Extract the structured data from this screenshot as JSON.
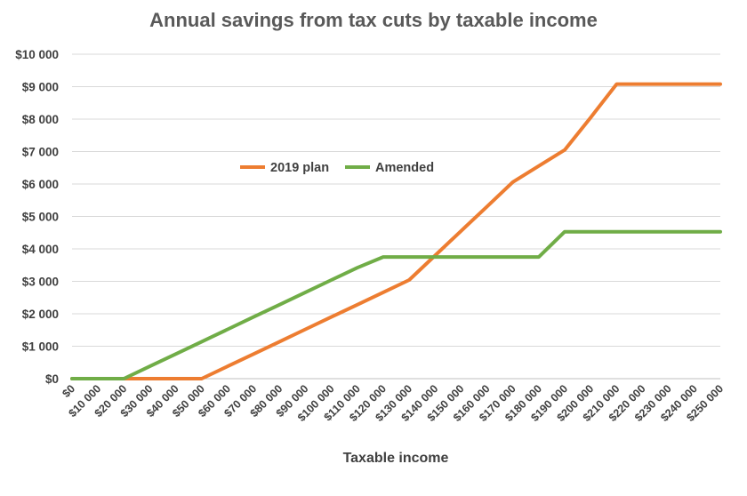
{
  "chart_data": {
    "type": "line",
    "title": "Annual savings from tax cuts by taxable income",
    "xlabel": "Taxable income",
    "ylabel": "",
    "ylim": [
      0,
      10000
    ],
    "yticks": [
      "$0",
      "$1 000",
      "$2 000",
      "$3 000",
      "$4 000",
      "$5 000",
      "$6 000",
      "$7 000",
      "$8 000",
      "$9 000",
      "$10 000"
    ],
    "categories": [
      "$0",
      "$10 000",
      "$20 000",
      "$30 000",
      "$40 000",
      "$50 000",
      "$60 000",
      "$70 000",
      "$80 000",
      "$90 000",
      "$100 000",
      "$110 000",
      "$120 000",
      "$130 000",
      "$140 000",
      "$150 000",
      "$160 000",
      "$170 000",
      "$180 000",
      "$190 000",
      "$200 000",
      "$210 000",
      "$220 000",
      "$230 000",
      "$240 000",
      "$250 000"
    ],
    "legend_position": "middle-left",
    "grid": true,
    "series": [
      {
        "name": "2019 plan",
        "color": "#ED7D31",
        "values": [
          0,
          0,
          0,
          0,
          0,
          0,
          380,
          760,
          1140,
          1520,
          1900,
          2280,
          2660,
          3040,
          3795,
          4550,
          5305,
          6060,
          6555,
          7050,
          8050,
          9080,
          9080,
          9080,
          9080,
          9080
        ]
      },
      {
        "name": "Amended",
        "color": "#70AD47",
        "values": [
          0,
          0,
          0,
          380,
          760,
          1140,
          1520,
          1900,
          2280,
          2660,
          3040,
          3420,
          3750,
          3750,
          3750,
          3750,
          3750,
          3750,
          3750,
          4530,
          4530,
          4530,
          4530,
          4530,
          4530,
          4530
        ]
      }
    ]
  }
}
